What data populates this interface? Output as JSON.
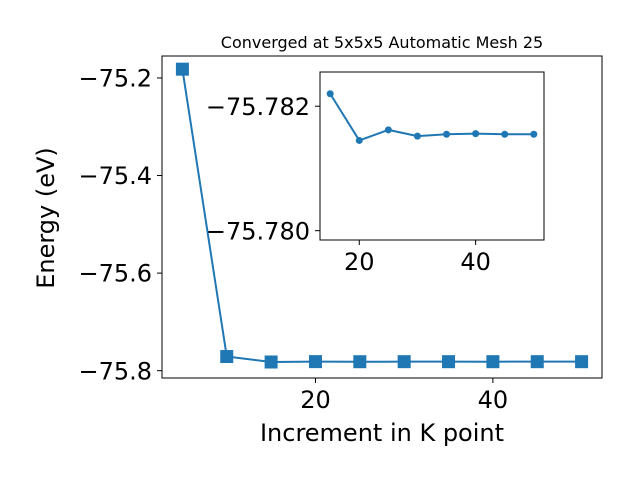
{
  "chart_data": [
    {
      "type": "line",
      "title": "Converged at 5x5x5 Automatic Mesh 25",
      "xlabel": "Increment in K point",
      "ylabel": "Energy (eV)",
      "xlim": [
        2.7,
        52.3
      ],
      "ylim": [
        -75.815,
        -75.155
      ],
      "xticks": [
        20,
        40
      ],
      "yticks": [
        -75.2,
        -75.4,
        -75.6,
        -75.8
      ],
      "xtick_labels": [
        "20",
        "40"
      ],
      "ytick_labels": [
        "−75.2",
        "−75.4",
        "−75.6",
        "−75.8"
      ],
      "grid": false,
      "marker": "square",
      "color": "#1f77b4",
      "series": [
        {
          "x": [
            5,
            10,
            15,
            20,
            25,
            30,
            35,
            40,
            45,
            50
          ],
          "y": [
            -75.182,
            -75.771,
            -75.7822,
            -75.78145,
            -75.78162,
            -75.78152,
            -75.78155,
            -75.78156,
            -75.78155,
            -75.78155
          ]
        }
      ]
    },
    {
      "type": "line",
      "title": "",
      "xlabel": "",
      "ylabel": "",
      "xlim": [
        13.25,
        51.75
      ],
      "ylim": [
        -75.77985,
        -75.78255
      ],
      "xticks": [
        20,
        40
      ],
      "yticks": [
        -75.782,
        -75.78
      ],
      "xtick_labels": [
        "20",
        "40"
      ],
      "ytick_labels": [
        "−75.782",
        "−75.780"
      ],
      "grid": false,
      "marker": "circle",
      "color": "#1f77b4",
      "series": [
        {
          "x": [
            15,
            20,
            25,
            30,
            35,
            40,
            45,
            50
          ],
          "y": [
            -75.7822,
            -75.78145,
            -75.78162,
            -75.78152,
            -75.78155,
            -75.78156,
            -75.78155,
            -75.78155
          ]
        }
      ]
    }
  ]
}
